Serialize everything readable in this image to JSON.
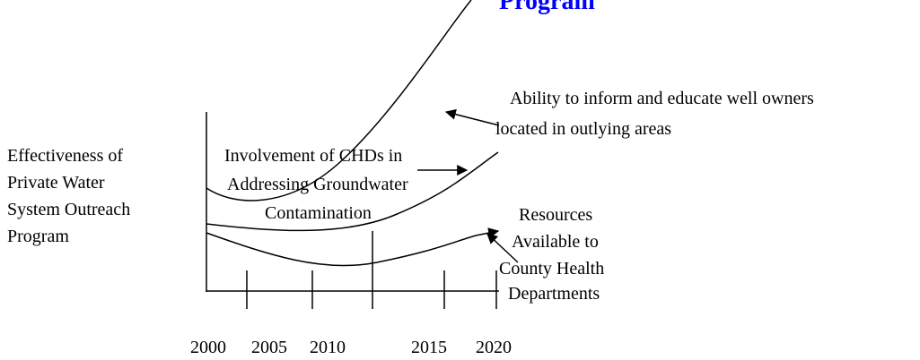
{
  "title": "Program",
  "y_label": [
    "Effectiveness of",
    "Private Water",
    "System Outreach",
    "Program"
  ],
  "x_labels": [
    "2000",
    "2005",
    "2010",
    "2015",
    "2020"
  ],
  "annotations": {
    "ability": [
      "Ability to inform and educate well owners",
      "located in outlying areas"
    ],
    "involvement": [
      "Involvement of CHDs in",
      "Addressing Groundwater",
      "Contamination"
    ],
    "resources": [
      "Resources",
      "Available to",
      "County Health",
      "Departments"
    ]
  }
}
